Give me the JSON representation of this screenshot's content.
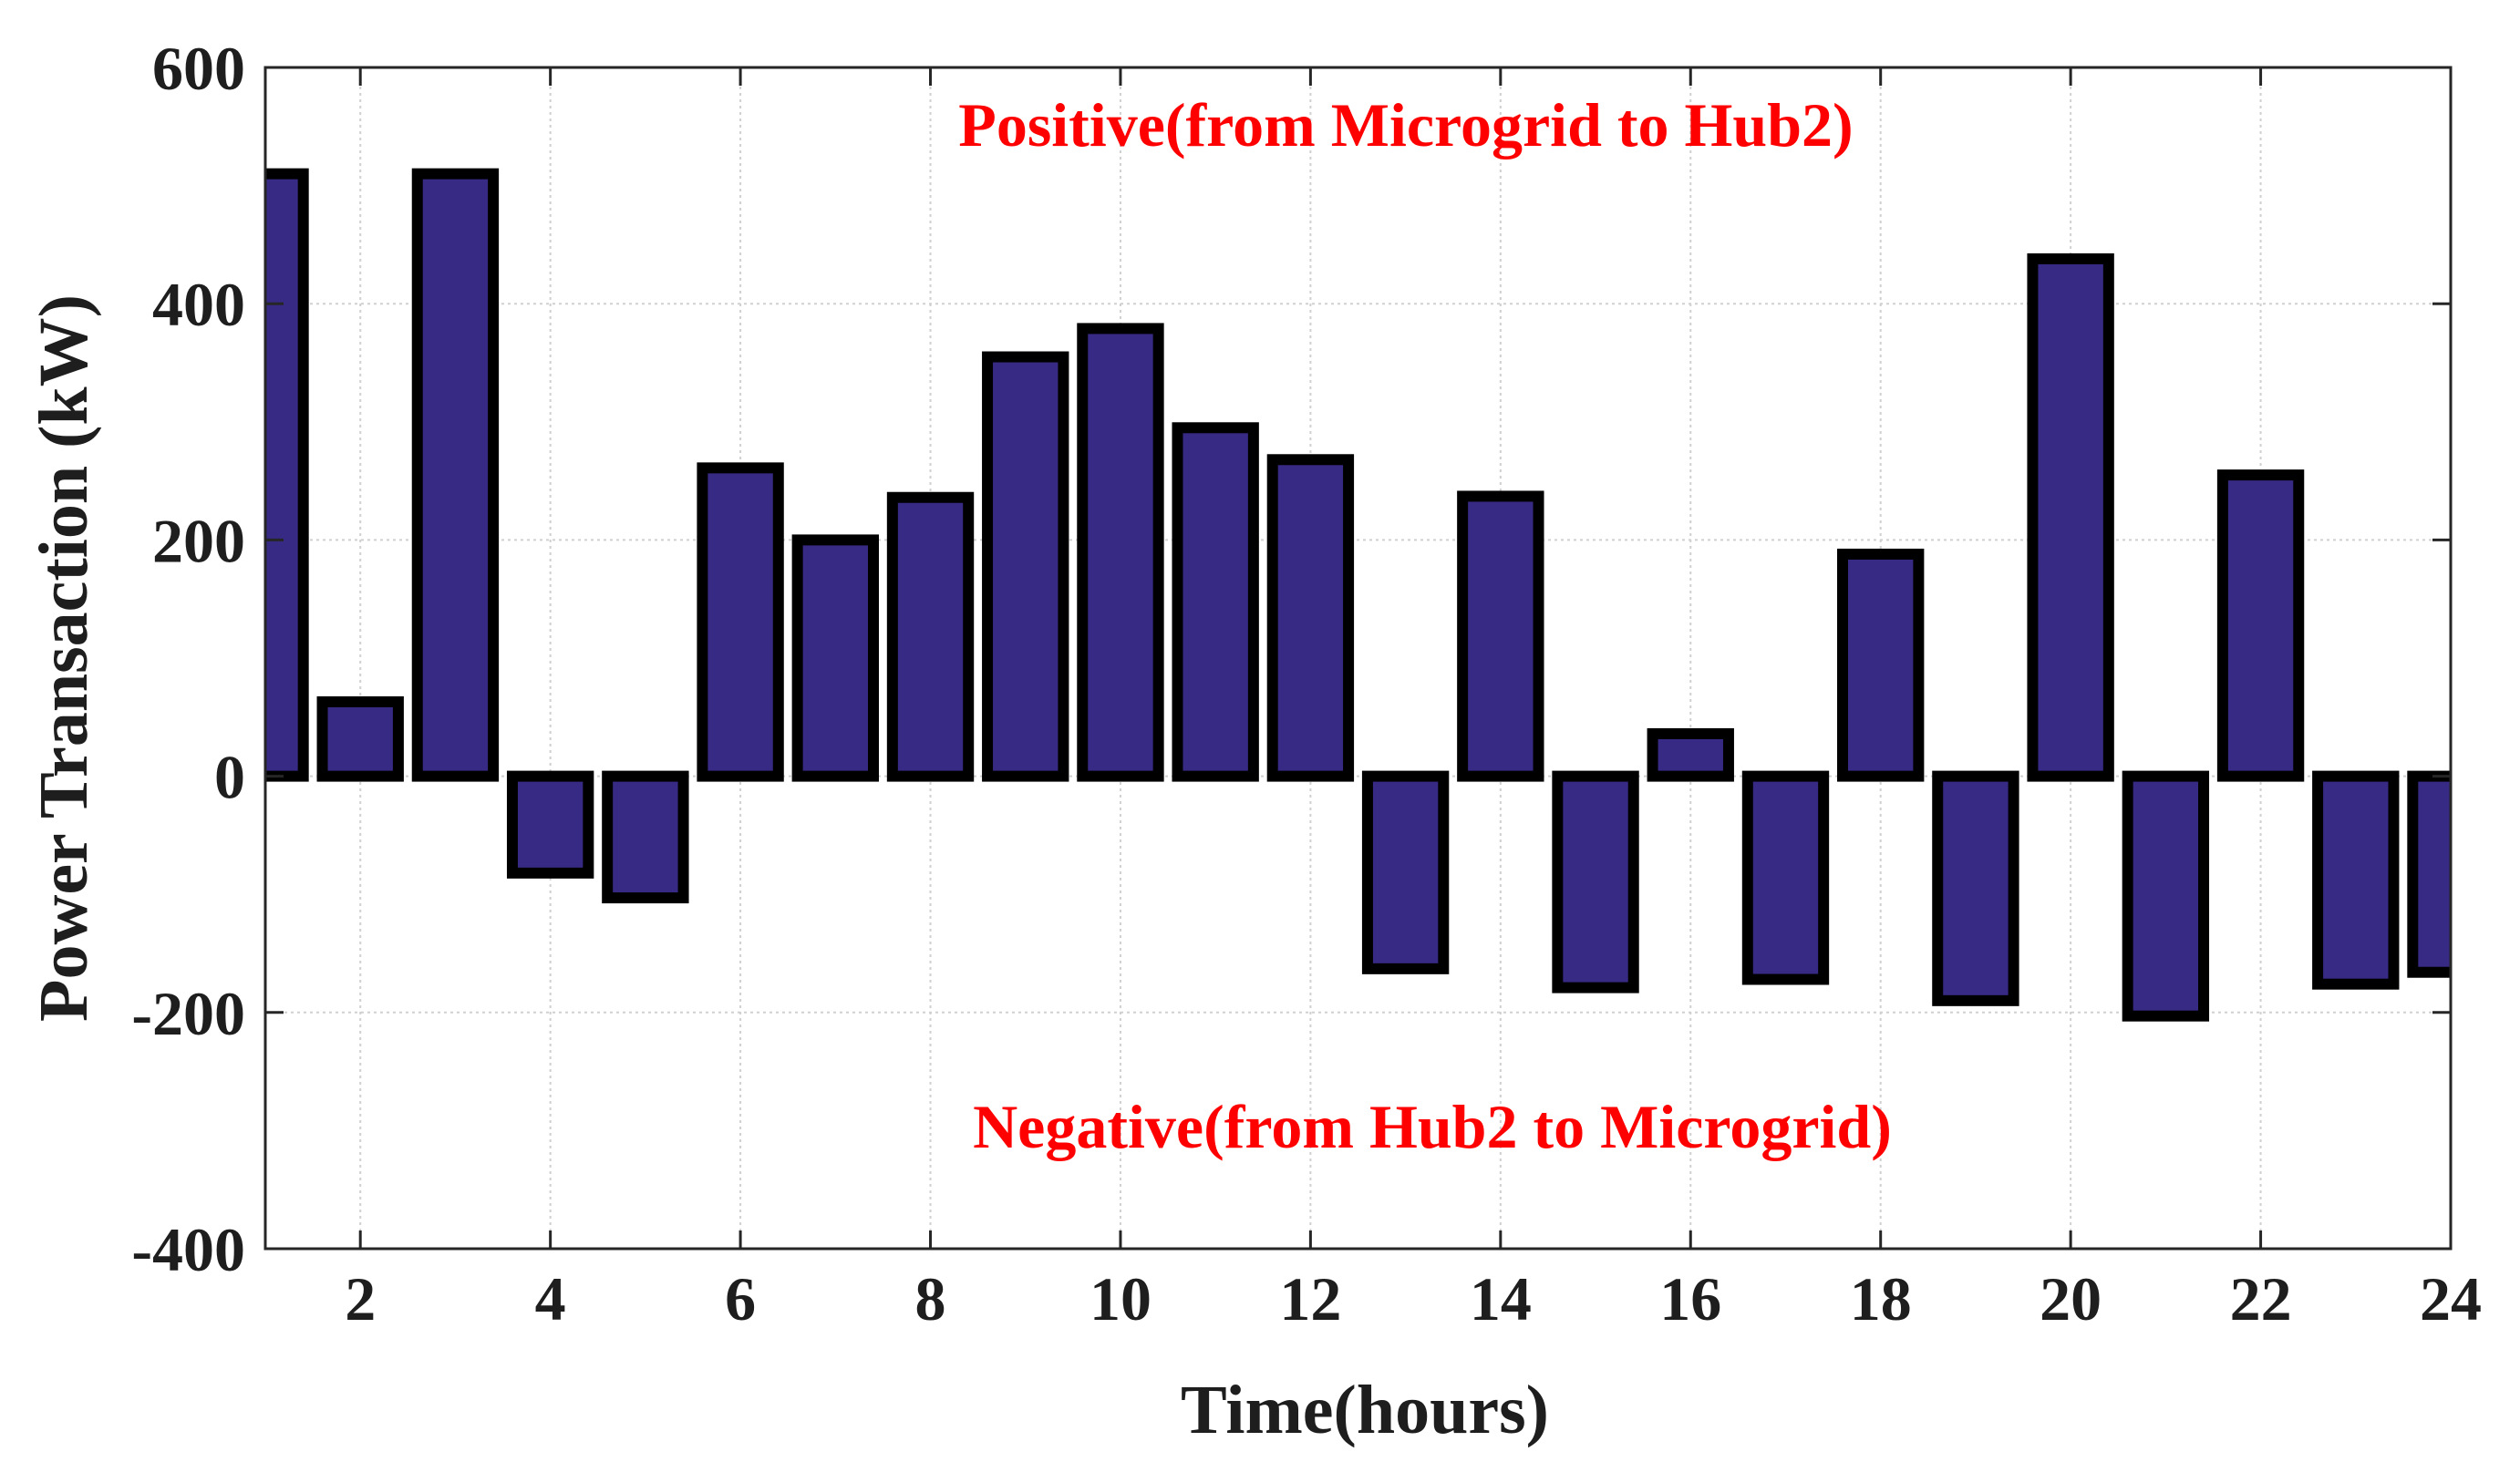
{
  "chart_data": {
    "type": "bar",
    "xlabel": "Time(hours)",
    "ylabel": "Power Transaction (kW)",
    "xlim": [
      1,
      24
    ],
    "ylim": [
      -400,
      600
    ],
    "x_ticks": [
      2,
      4,
      6,
      8,
      10,
      12,
      14,
      16,
      18,
      20,
      22,
      24
    ],
    "y_ticks": [
      -400,
      -200,
      0,
      200,
      400,
      600
    ],
    "grid": true,
    "bar_color": "#372a84",
    "edge_color": "#000000",
    "annotation_color": "#ff0000",
    "annotations": {
      "positive": "Positive(from Microgrid to Hub2)",
      "negative": "Negative(from Hub2 to Microgrid)"
    },
    "x": [
      1,
      2,
      3,
      4,
      5,
      6,
      7,
      8,
      9,
      10,
      11,
      12,
      13,
      14,
      15,
      16,
      17,
      18,
      19,
      20,
      21,
      22,
      23,
      24
    ],
    "values": [
      510,
      63,
      510,
      -82,
      -103,
      261,
      200,
      236,
      355,
      379,
      295,
      268,
      -163,
      237,
      -179,
      36,
      -172,
      188,
      -190,
      438,
      -203,
      255,
      -176,
      -166
    ]
  }
}
